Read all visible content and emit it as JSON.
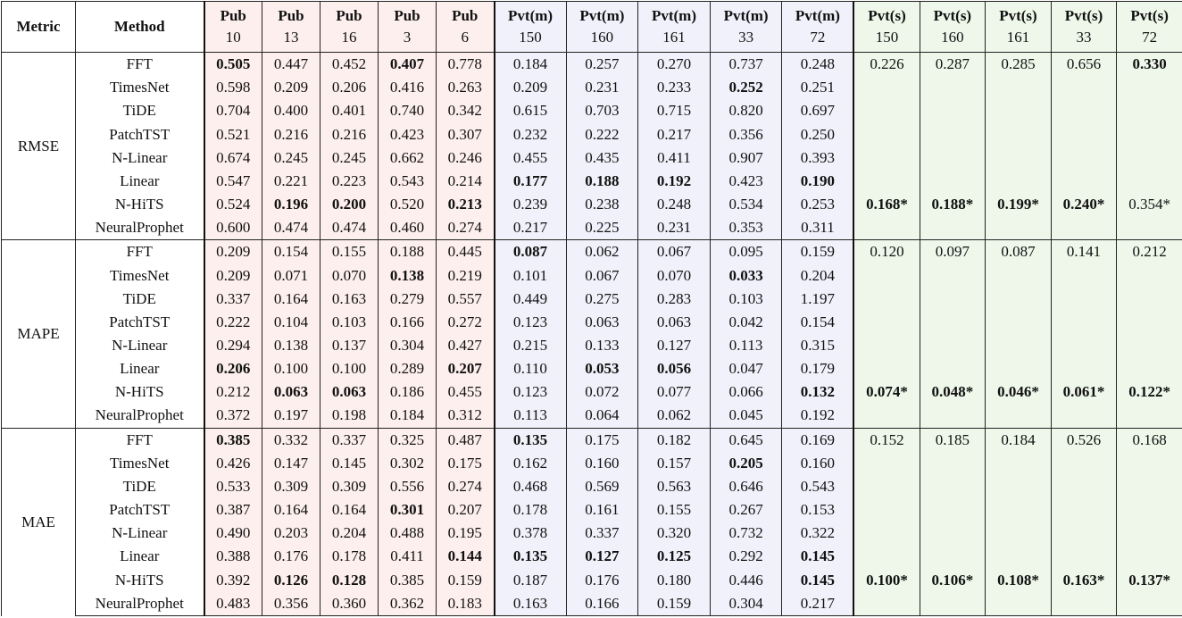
{
  "table": {
    "header": {
      "metric": "Metric",
      "method": "Method"
    },
    "columns": [
      {
        "group": "Pub",
        "id": "10"
      },
      {
        "group": "Pub",
        "id": "13"
      },
      {
        "group": "Pub",
        "id": "16"
      },
      {
        "group": "Pub",
        "id": "3"
      },
      {
        "group": "Pub",
        "id": "6"
      },
      {
        "group": "Pvt(m)",
        "id": "150"
      },
      {
        "group": "Pvt(m)",
        "id": "160"
      },
      {
        "group": "Pvt(m)",
        "id": "161"
      },
      {
        "group": "Pvt(m)",
        "id": "33"
      },
      {
        "group": "Pvt(m)",
        "id": "72"
      },
      {
        "group": "Pvt(s)",
        "id": "150"
      },
      {
        "group": "Pvt(s)",
        "id": "160"
      },
      {
        "group": "Pvt(s)",
        "id": "161"
      },
      {
        "group": "Pvt(s)",
        "id": "33"
      },
      {
        "group": "Pvt(s)",
        "id": "72"
      }
    ],
    "groups": [
      {
        "metric": "RMSE",
        "rows": [
          {
            "method": "FFT",
            "values": [
              "0.505",
              "0.447",
              "0.452",
              "0.407",
              "0.778",
              "0.184",
              "0.257",
              "0.270",
              "0.737",
              "0.248",
              "0.226",
              "0.287",
              "0.285",
              "0.656",
              "0.330"
            ],
            "bold": [
              0,
              3,
              14
            ]
          },
          {
            "method": "TimesNet",
            "values": [
              "0.598",
              "0.209",
              "0.206",
              "0.416",
              "0.263",
              "0.209",
              "0.231",
              "0.233",
              "0.252",
              "0.251"
            ],
            "bold": [
              8
            ]
          },
          {
            "method": "TiDE",
            "values": [
              "0.704",
              "0.400",
              "0.401",
              "0.740",
              "0.342",
              "0.615",
              "0.703",
              "0.715",
              "0.820",
              "0.697"
            ],
            "bold": []
          },
          {
            "method": "PatchTST",
            "values": [
              "0.521",
              "0.216",
              "0.216",
              "0.423",
              "0.307",
              "0.232",
              "0.222",
              "0.217",
              "0.356",
              "0.250"
            ],
            "bold": []
          },
          {
            "method": "N-Linear",
            "values": [
              "0.674",
              "0.245",
              "0.245",
              "0.662",
              "0.246",
              "0.455",
              "0.435",
              "0.411",
              "0.907",
              "0.393"
            ],
            "bold": []
          },
          {
            "method": "Linear",
            "values": [
              "0.547",
              "0.221",
              "0.223",
              "0.543",
              "0.214",
              "0.177",
              "0.188",
              "0.192",
              "0.423",
              "0.190"
            ],
            "bold": [
              5,
              6,
              7,
              9
            ]
          },
          {
            "method": "N-HiTS",
            "values": [
              "0.524",
              "0.196",
              "0.200",
              "0.520",
              "0.213",
              "0.239",
              "0.238",
              "0.248",
              "0.534",
              "0.253",
              "0.168*",
              "0.188*",
              "0.199*",
              "0.240*",
              "0.354*"
            ],
            "bold": [
              1,
              2,
              4,
              10,
              11,
              12,
              13
            ]
          },
          {
            "method": "NeuralProphet",
            "values": [
              "0.600",
              "0.474",
              "0.474",
              "0.460",
              "0.274",
              "0.217",
              "0.225",
              "0.231",
              "0.353",
              "0.311"
            ],
            "bold": []
          }
        ]
      },
      {
        "metric": "MAPE",
        "rows": [
          {
            "method": "FFT",
            "values": [
              "0.209",
              "0.154",
              "0.155",
              "0.188",
              "0.445",
              "0.087",
              "0.062",
              "0.067",
              "0.095",
              "0.159",
              "0.120",
              "0.097",
              "0.087",
              "0.141",
              "0.212"
            ],
            "bold": [
              5
            ]
          },
          {
            "method": "TimesNet",
            "values": [
              "0.209",
              "0.071",
              "0.070",
              "0.138",
              "0.219",
              "0.101",
              "0.067",
              "0.070",
              "0.033",
              "0.204"
            ],
            "bold": [
              3,
              8
            ]
          },
          {
            "method": "TiDE",
            "values": [
              "0.337",
              "0.164",
              "0.163",
              "0.279",
              "0.557",
              "0.449",
              "0.275",
              "0.283",
              "0.103",
              "1.197"
            ],
            "bold": []
          },
          {
            "method": "PatchTST",
            "values": [
              "0.222",
              "0.104",
              "0.103",
              "0.166",
              "0.272",
              "0.123",
              "0.063",
              "0.063",
              "0.042",
              "0.154"
            ],
            "bold": []
          },
          {
            "method": "N-Linear",
            "values": [
              "0.294",
              "0.138",
              "0.137",
              "0.304",
              "0.427",
              "0.215",
              "0.133",
              "0.127",
              "0.113",
              "0.315"
            ],
            "bold": []
          },
          {
            "method": "Linear",
            "values": [
              "0.206",
              "0.100",
              "0.100",
              "0.289",
              "0.207",
              "0.110",
              "0.053",
              "0.056",
              "0.047",
              "0.179"
            ],
            "bold": [
              0,
              4,
              6,
              7
            ]
          },
          {
            "method": "N-HiTS",
            "values": [
              "0.212",
              "0.063",
              "0.063",
              "0.186",
              "0.455",
              "0.123",
              "0.072",
              "0.077",
              "0.066",
              "0.132",
              "0.074*",
              "0.048*",
              "0.046*",
              "0.061*",
              "0.122*"
            ],
            "bold": [
              1,
              2,
              9,
              10,
              11,
              12,
              13,
              14
            ]
          },
          {
            "method": "NeuralProphet",
            "values": [
              "0.372",
              "0.197",
              "0.198",
              "0.184",
              "0.312",
              "0.113",
              "0.064",
              "0.062",
              "0.045",
              "0.192"
            ],
            "bold": []
          }
        ]
      },
      {
        "metric": "MAE",
        "rows": [
          {
            "method": "FFT",
            "values": [
              "0.385",
              "0.332",
              "0.337",
              "0.325",
              "0.487",
              "0.135",
              "0.175",
              "0.182",
              "0.645",
              "0.169",
              "0.152",
              "0.185",
              "0.184",
              "0.526",
              "0.168"
            ],
            "bold": [
              0,
              5
            ]
          },
          {
            "method": "TimesNet",
            "values": [
              "0.426",
              "0.147",
              "0.145",
              "0.302",
              "0.175",
              "0.162",
              "0.160",
              "0.157",
              "0.205",
              "0.160"
            ],
            "bold": [
              8
            ]
          },
          {
            "method": "TiDE",
            "values": [
              "0.533",
              "0.309",
              "0.309",
              "0.556",
              "0.274",
              "0.468",
              "0.569",
              "0.563",
              "0.646",
              "0.543"
            ],
            "bold": []
          },
          {
            "method": "PatchTST",
            "values": [
              "0.387",
              "0.164",
              "0.164",
              "0.301",
              "0.207",
              "0.178",
              "0.161",
              "0.155",
              "0.267",
              "0.153"
            ],
            "bold": [
              3
            ]
          },
          {
            "method": "N-Linear",
            "values": [
              "0.490",
              "0.203",
              "0.204",
              "0.488",
              "0.195",
              "0.378",
              "0.337",
              "0.320",
              "0.732",
              "0.322"
            ],
            "bold": []
          },
          {
            "method": "Linear",
            "values": [
              "0.388",
              "0.176",
              "0.178",
              "0.411",
              "0.144",
              "0.135",
              "0.127",
              "0.125",
              "0.292",
              "0.145"
            ],
            "bold": [
              4,
              5,
              6,
              7,
              9
            ]
          },
          {
            "method": "N-HiTS",
            "values": [
              "0.392",
              "0.126",
              "0.128",
              "0.385",
              "0.159",
              "0.187",
              "0.176",
              "0.180",
              "0.446",
              "0.145",
              "0.100*",
              "0.106*",
              "0.108*",
              "0.163*",
              "0.137*"
            ],
            "bold": [
              1,
              2,
              9,
              10,
              11,
              12,
              13,
              14
            ]
          },
          {
            "method": "NeuralProphet",
            "values": [
              "0.483",
              "0.356",
              "0.360",
              "0.362",
              "0.183",
              "0.163",
              "0.166",
              "0.159",
              "0.304",
              "0.217"
            ],
            "bold": []
          }
        ]
      }
    ]
  }
}
